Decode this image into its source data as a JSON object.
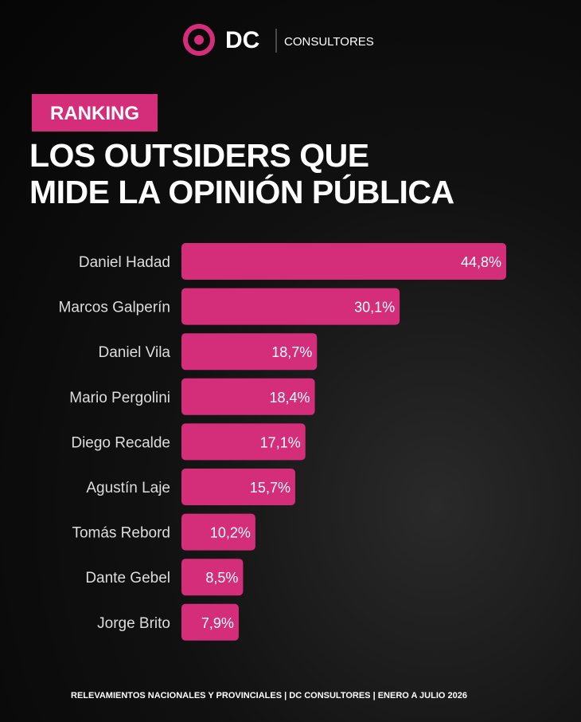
{
  "brand": {
    "logo": "DC",
    "name": "CONSULTORES"
  },
  "badge": "RANKING",
  "chart_data": {
    "type": "hbar",
    "title": "LOS OUTSIDERS QUE\nMIDE LA OPINIÓN PÚBLICA",
    "categories": [
      "Daniel Hadad",
      "Marcos Galperín",
      "Daniel Vila",
      "Mario Pergolini",
      "Diego Recalde",
      "Agustín Laje",
      "Tomás Rebord",
      "Dante Gebel",
      "Jorge Brito"
    ],
    "values": [
      44.8,
      30.1,
      18.7,
      18.4,
      17.1,
      15.7,
      10.2,
      8.5,
      7.9
    ],
    "value_labels": [
      "44,8%",
      "30,1%",
      "18,7%",
      "18,4%",
      "17,1%",
      "15,7%",
      "10,2%",
      "8,5%",
      "7,9%"
    ],
    "color": "#d42e7b",
    "source": "RELEVAMIENTOS NACIONALES Y PROVINCIALES | DC CONSULTORES | ENERO A JULIO 2026"
  }
}
